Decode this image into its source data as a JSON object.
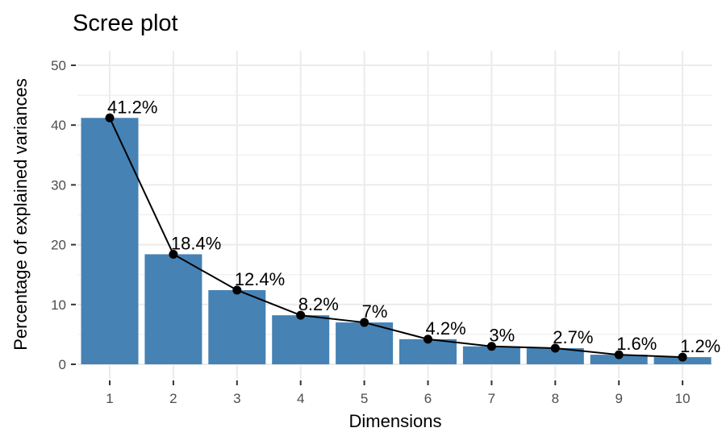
{
  "chart_data": {
    "type": "bar",
    "title": "Scree plot",
    "xlabel": "Dimensions",
    "ylabel": "Percentage of explained variances",
    "categories": [
      "1",
      "2",
      "3",
      "4",
      "5",
      "6",
      "7",
      "8",
      "9",
      "10"
    ],
    "values": [
      41.2,
      18.4,
      12.4,
      8.2,
      7.0,
      4.2,
      3.0,
      2.7,
      1.6,
      1.2
    ],
    "data_labels": [
      "41.2%",
      "18.4%",
      "12.4%",
      "8.2%",
      "7%",
      "4.2%",
      "3%",
      "2.7%",
      "1.6%",
      "1.2%"
    ],
    "ylim": [
      0,
      50
    ],
    "yticks": [
      "0",
      "10",
      "20",
      "30",
      "40",
      "50"
    ],
    "overlay": "line-with-points",
    "grid": true,
    "colors": {
      "bar": "#4682B4",
      "line": "#000000",
      "point": "#000000",
      "grid": "#ebebeb"
    }
  }
}
